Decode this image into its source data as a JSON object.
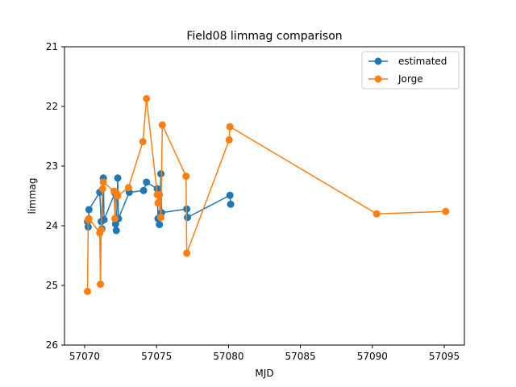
{
  "chart_data": {
    "type": "line",
    "title": "Field08 limmag comparison",
    "xlabel": "MJD",
    "ylabel": "limmag",
    "xlim": [
      57068.6,
      57096.4
    ],
    "ylim": [
      26,
      21
    ],
    "y_inverted": true,
    "xticks": [
      57070,
      57075,
      57080,
      57085,
      57090,
      57095
    ],
    "yticks": [
      21,
      22,
      23,
      24,
      25,
      26
    ],
    "grid": false,
    "legend_position": "top-right",
    "series": [
      {
        "name": "estimated",
        "color": "#1f77b4",
        "marker": "circle",
        "points": [
          [
            57070.2,
            23.93
          ],
          [
            57070.25,
            24.02
          ],
          [
            57070.3,
            23.73
          ],
          [
            57071.05,
            23.44
          ],
          [
            57071.15,
            23.93
          ],
          [
            57071.2,
            24.05
          ],
          [
            57071.3,
            23.2
          ],
          [
            57071.35,
            23.9
          ],
          [
            57072.1,
            23.45
          ],
          [
            57072.15,
            23.97
          ],
          [
            57072.2,
            24.08
          ],
          [
            57072.3,
            23.2
          ],
          [
            57072.35,
            23.88
          ],
          [
            57073.1,
            23.44
          ],
          [
            57074.1,
            23.41
          ],
          [
            57074.3,
            23.27
          ],
          [
            57075.05,
            23.38
          ],
          [
            57075.1,
            23.88
          ],
          [
            57075.2,
            23.98
          ],
          [
            57075.3,
            23.13
          ],
          [
            57075.35,
            23.78
          ],
          [
            57077.1,
            23.72
          ],
          [
            57077.15,
            23.86
          ],
          [
            57080.1,
            23.49
          ],
          [
            57080.15,
            23.64
          ]
        ]
      },
      {
        "name": "Jorge",
        "color": "#ff7f0e",
        "marker": "circle",
        "points": [
          [
            57070.2,
            25.1
          ],
          [
            57070.25,
            23.9
          ],
          [
            57070.3,
            23.88
          ],
          [
            57071.05,
            24.12
          ],
          [
            57071.1,
            24.98
          ],
          [
            57071.15,
            24.07
          ],
          [
            57071.25,
            23.38
          ],
          [
            57071.3,
            23.27
          ],
          [
            57072.05,
            23.42
          ],
          [
            57072.1,
            23.88
          ],
          [
            57072.2,
            23.45
          ],
          [
            57072.3,
            23.5
          ],
          [
            57073.05,
            23.36
          ],
          [
            57074.05,
            22.59
          ],
          [
            57074.3,
            21.87
          ],
          [
            57075.05,
            23.48
          ],
          [
            57075.1,
            23.62
          ],
          [
            57075.2,
            23.48
          ],
          [
            57075.3,
            23.86
          ],
          [
            57075.4,
            22.31
          ],
          [
            57077.05,
            23.17
          ],
          [
            57077.1,
            24.46
          ],
          [
            57080.05,
            22.56
          ],
          [
            57080.1,
            22.34
          ],
          [
            57090.3,
            23.8
          ],
          [
            57095.1,
            23.76
          ]
        ]
      }
    ]
  }
}
